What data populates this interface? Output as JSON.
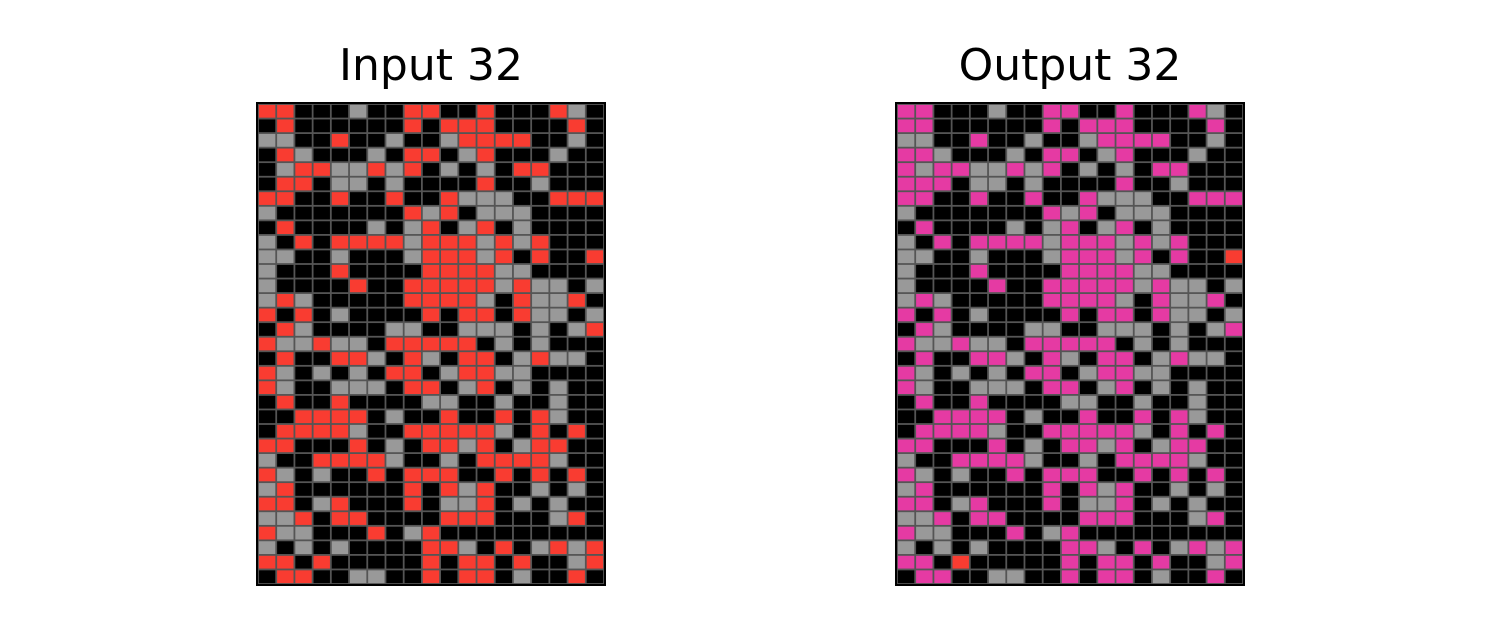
{
  "panels": [
    {
      "title": "Input 32",
      "grid": [
        "2200050022002000250",
        "0200000020222000020",
        "5500200500522220050",
        "0250005022052000500",
        "0522552520505022000",
        "0220550500002005000",
        "2200200200255500222",
        "5000000025205550000",
        "0200005052052050000",
        "5020222252225252000",
        "5500500052225202002",
        "5000200002222550000",
        "5000020022222525505",
        "5250000022225025520",
        "2020500002022025505",
        "0250000550055505052",
        "2552550222220505000",
        "0200225025022052550",
        "2505050220522550000",
        "2500555022052050500",
        "0200200005500500500",
        "0022220500200202500",
        "0222250022222502020",
        "2200020502252052200",
        "5002222500502222500",
        "2505002022200202020",
        "5200000020252005050",
        "2205200020552050500",
        "5520220000222000520",
        "2550002052000000000",
        "5050500002250205252",
        "2202000002022020052",
        "0220055002022050020"
      ]
    },
    {
      "title": "Output 32",
      "grid": [
        "6600050066006000650",
        "6600000060666000060",
        "5500600500566660050",
        "6650005066056000500",
        "6566556560505066000",
        "6660550500006005000",
        "6600600600655500666",
        "5000000065605550000",
        "0600005056056050000",
        "5060666656665656000",
        "5500500056665606002",
        "5000600006666550000",
        "5000060066666565505",
        "5650000066665065560",
        "6060500006066065505",
        "0650000550055505056",
        "6556550666660505000",
        "0600665065066056550",
        "6505050660566550000",
        "6500555066056050500",
        "0600600005500500500",
        "0066660500600606500",
        "0666650066666506060",
        "6600060506656056600",
        "5006666500506666500",
        "6505006066600606060",
        "5600000060656005050",
        "6605600060556050500",
        "5560660000666000560",
        "6550006056000000000",
        "5050500006650605656",
        "6602000006066060056",
        "0660055006066050060"
      ]
    }
  ],
  "cell_colors": {
    "0": "#000000",
    "2": "#f93c31",
    "5": "#999999",
    "6": "#e53aa3"
  }
}
